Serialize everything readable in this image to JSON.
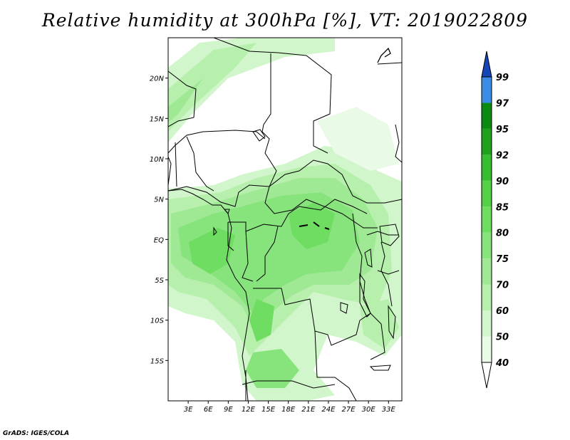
{
  "title": "Relative humidity at 300hPa [%], VT: 2019022809",
  "credit": "GrADS: IGES/COLA",
  "lat_labels": [
    {
      "lat": 20,
      "text": "20N"
    },
    {
      "lat": 15,
      "text": "15N"
    },
    {
      "lat": 10,
      "text": "10N"
    },
    {
      "lat": 5,
      "text": "5N"
    },
    {
      "lat": 0,
      "text": "EQ"
    },
    {
      "lat": -5,
      "text": "5S"
    },
    {
      "lat": -10,
      "text": "10S"
    },
    {
      "lat": -15,
      "text": "15S"
    }
  ],
  "lon_labels": [
    {
      "lon": 3,
      "text": "3E"
    },
    {
      "lon": 6,
      "text": "6E"
    },
    {
      "lon": 9,
      "text": "9E"
    },
    {
      "lon": 12,
      "text": "12E"
    },
    {
      "lon": 15,
      "text": "15E"
    },
    {
      "lon": 18,
      "text": "18E"
    },
    {
      "lon": 21,
      "text": "21E"
    },
    {
      "lon": 24,
      "text": "24E"
    },
    {
      "lon": 27,
      "text": "27E"
    },
    {
      "lon": 30,
      "text": "30E"
    },
    {
      "lon": 33,
      "text": "33E"
    }
  ],
  "map_extent": {
    "lon_min": 0,
    "lon_max": 35,
    "lat_min": -20,
    "lat_max": 25
  },
  "colorbar": {
    "levels": [
      "40",
      "50",
      "60",
      "70",
      "75",
      "80",
      "85",
      "90",
      "92",
      "95",
      "97",
      "99"
    ],
    "colors": [
      "#e9fbe6",
      "#d2f6cb",
      "#b7efad",
      "#9fe894",
      "#87e37b",
      "#6fdc62",
      "#53cf48",
      "#36bd30",
      "#1fa11d",
      "#0b8a12",
      "#3a8ce6",
      "#1f62d6",
      "#1446b9"
    ],
    "under_color": "#ffffff"
  }
}
